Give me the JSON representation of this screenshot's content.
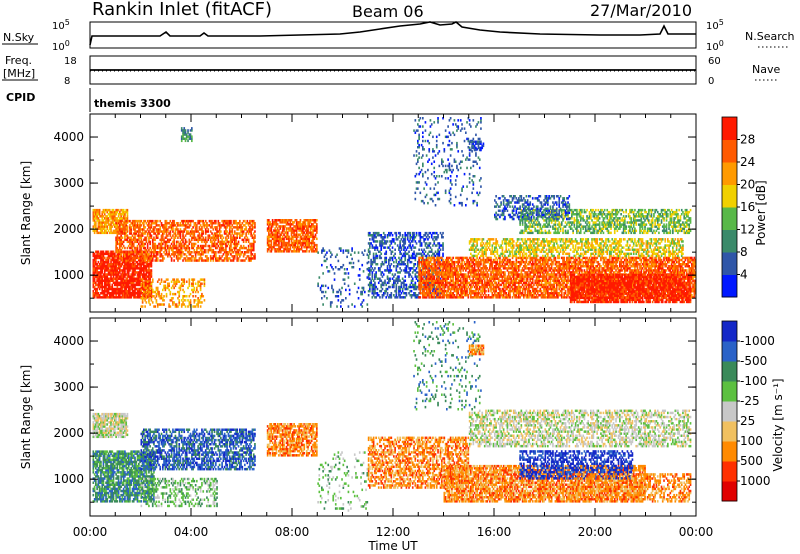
{
  "header": {
    "station": "Rankin Inlet (fitACF)",
    "beam": "Beam 06",
    "date": "27/Mar/2010"
  },
  "top_panels": {
    "nsky_label": "N.Sky",
    "nsky_ticks": [
      "10^5",
      "10^0"
    ],
    "nsearch_label": "N.Search",
    "nsearch_ticks": [
      "10^5",
      "10^0"
    ],
    "freq_label_1": "Freq.",
    "freq_label_2": "[MHz]",
    "freq_ticks": [
      "18",
      "8"
    ],
    "nave_label": "Nave",
    "nave_ticks": [
      "60",
      "0"
    ],
    "cpid_label": "CPID",
    "cpid_text": "themis 3300"
  },
  "chart_data": [
    {
      "type": "heatmap",
      "title": "",
      "xlabel": "Time UT",
      "ylabel": "Slant Range [km]",
      "x_ticks": [
        "00:00",
        "04:00",
        "08:00",
        "12:00",
        "16:00",
        "20:00",
        "00:00"
      ],
      "xlim_hours": [
        0,
        24
      ],
      "y_ticks": [
        "1000",
        "2000",
        "3000",
        "4000"
      ],
      "ylim_km": [
        200,
        4500
      ],
      "colorbar": {
        "label": "Power [dB]",
        "ticks": [
          "4",
          "8",
          "12",
          "16",
          "20",
          "24",
          "28"
        ],
        "colors": [
          "#0018ff",
          "#2f56a8",
          "#3a8a6a",
          "#58b848",
          "#f0d000",
          "#ff9a00",
          "#ff5a00",
          "#ff1a00"
        ]
      },
      "regions": [
        {
          "t0": 0.1,
          "t1": 2.4,
          "r0": 500,
          "r1": 1500,
          "level": 7,
          "density": 0.85
        },
        {
          "t0": 0.1,
          "t1": 1.5,
          "r0": 1900,
          "r1": 2400,
          "level": 5,
          "density": 0.75
        },
        {
          "t0": 1.0,
          "t1": 6.5,
          "r0": 1300,
          "r1": 2200,
          "level": 6,
          "density": 0.6
        },
        {
          "t0": 2.0,
          "t1": 4.5,
          "r0": 300,
          "r1": 900,
          "level": 5,
          "density": 0.4
        },
        {
          "t0": 7.0,
          "t1": 9.0,
          "r0": 1500,
          "r1": 2200,
          "level": 6,
          "density": 0.75
        },
        {
          "t0": 9.0,
          "t1": 11.0,
          "r0": 300,
          "r1": 1600,
          "level": 1,
          "density": 0.12
        },
        {
          "t0": 3.6,
          "t1": 4.0,
          "r0": 3900,
          "r1": 4200,
          "level": 2,
          "density": 0.5
        },
        {
          "t0": 11.0,
          "t1": 14.0,
          "r0": 500,
          "r1": 1900,
          "level": 1,
          "density": 0.45
        },
        {
          "t0": 13.0,
          "t1": 24.0,
          "r0": 500,
          "r1": 1400,
          "level": 6,
          "density": 0.75
        },
        {
          "t0": 19.0,
          "t1": 23.8,
          "r0": 400,
          "r1": 1000,
          "level": 7,
          "density": 0.8
        },
        {
          "t0": 15.0,
          "t1": 23.5,
          "r0": 1400,
          "r1": 1800,
          "level": 4,
          "density": 0.55
        },
        {
          "t0": 17.0,
          "t1": 23.8,
          "r0": 1900,
          "r1": 2400,
          "level": 3,
          "density": 0.55
        },
        {
          "t0": 16.0,
          "t1": 19.0,
          "r0": 2200,
          "r1": 2700,
          "level": 1,
          "density": 0.45
        },
        {
          "t0": 12.8,
          "t1": 15.5,
          "r0": 2500,
          "r1": 4400,
          "level": 1,
          "density": 0.12
        },
        {
          "t0": 15.0,
          "t1": 15.6,
          "r0": 3700,
          "r1": 3900,
          "level": 1,
          "density": 0.7
        }
      ]
    },
    {
      "type": "heatmap",
      "title": "",
      "xlabel": "Time UT",
      "ylabel": "Slant Range [km]",
      "x_ticks": [
        "00:00",
        "04:00",
        "08:00",
        "12:00",
        "16:00",
        "20:00",
        "00:00"
      ],
      "xlim_hours": [
        0,
        24
      ],
      "y_ticks": [
        "1000",
        "2000",
        "3000",
        "4000"
      ],
      "ylim_km": [
        200,
        4500
      ],
      "colorbar": {
        "label": "Velocity [m s⁻¹]",
        "ticks": [
          "1000",
          "500",
          "100",
          "25",
          "-25",
          "-100",
          "-500",
          "-1000"
        ],
        "colors": [
          "#1428c8",
          "#2a62c8",
          "#3a8a5a",
          "#5cc040",
          "#c8c8c8",
          "#f0c060",
          "#ff8a00",
          "#ff3000",
          "#e00000"
        ]
      },
      "regions": [
        {
          "t0": 0.1,
          "t1": 2.5,
          "r0": 500,
          "r1": 1600,
          "level": 2,
          "density": 0.75
        },
        {
          "t0": 0.1,
          "t1": 1.5,
          "r0": 1900,
          "r1": 2400,
          "level": 4,
          "density": 0.75
        },
        {
          "t0": 2.0,
          "t1": 6.5,
          "r0": 1200,
          "r1": 2100,
          "level": 1,
          "density": 0.6
        },
        {
          "t0": 2.0,
          "t1": 5.0,
          "r0": 400,
          "r1": 1000,
          "level": 3,
          "density": 0.35
        },
        {
          "t0": 7.0,
          "t1": 9.0,
          "r0": 1500,
          "r1": 2200,
          "level": 6,
          "density": 0.75
        },
        {
          "t0": 9.0,
          "t1": 11.0,
          "r0": 300,
          "r1": 1600,
          "level": 3,
          "density": 0.12
        },
        {
          "t0": 11.0,
          "t1": 15.0,
          "r0": 800,
          "r1": 1900,
          "level": 6,
          "density": 0.55
        },
        {
          "t0": 14.0,
          "t1": 22.0,
          "r0": 500,
          "r1": 1300,
          "level": 6,
          "density": 0.75
        },
        {
          "t0": 17.0,
          "t1": 21.5,
          "r0": 1000,
          "r1": 1600,
          "level": 0,
          "density": 0.55
        },
        {
          "t0": 15.0,
          "t1": 23.8,
          "r0": 1700,
          "r1": 2500,
          "level": 4,
          "density": 0.5
        },
        {
          "t0": 19.0,
          "t1": 23.8,
          "r0": 500,
          "r1": 1100,
          "level": 6,
          "density": 0.45
        },
        {
          "t0": 12.8,
          "t1": 15.5,
          "r0": 2500,
          "r1": 4400,
          "level": 2,
          "density": 0.1
        },
        {
          "t0": 15.0,
          "t1": 15.6,
          "r0": 3700,
          "r1": 3900,
          "level": 6,
          "density": 0.7
        }
      ]
    }
  ]
}
